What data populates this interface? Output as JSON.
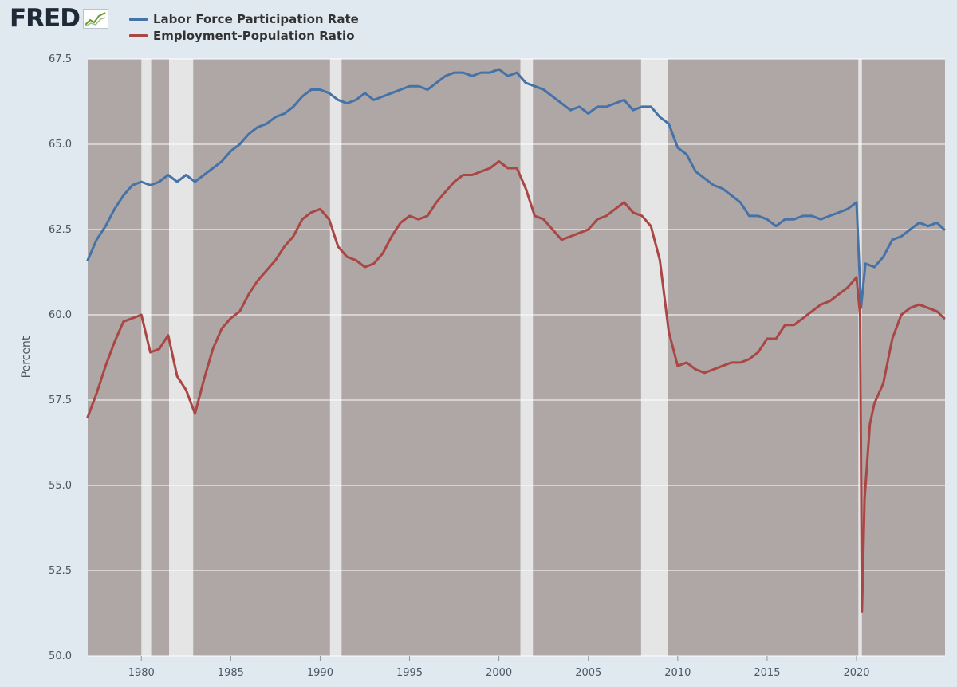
{
  "logo": {
    "text": "FRED"
  },
  "legend": [
    {
      "label": "Labor Force Participation Rate",
      "color": "#4572a7"
    },
    {
      "label": "Employment-Population Ratio",
      "color": "#aa4643"
    }
  ],
  "chart_data": {
    "type": "line",
    "ylabel": "Percent",
    "xlim": [
      1977.0,
      2024.95
    ],
    "ylim": [
      50.0,
      67.5
    ],
    "y_ticks": [
      "50.0",
      "52.5",
      "55.0",
      "57.5",
      "60.0",
      "62.5",
      "65.0",
      "67.5"
    ],
    "x_ticks": [
      "1980",
      "1985",
      "1990",
      "1995",
      "2000",
      "2005",
      "2010",
      "2015",
      "2020"
    ],
    "grid": true,
    "legend_position": "top-left",
    "recessions": [
      [
        1980.0,
        1980.55
      ],
      [
        1981.55,
        1982.9
      ],
      [
        1990.55,
        1991.2
      ],
      [
        2001.2,
        2001.9
      ],
      [
        2007.95,
        2009.45
      ],
      [
        2020.1,
        2020.3
      ]
    ],
    "series": [
      {
        "name": "Labor Force Participation Rate",
        "color": "#4572a7",
        "points": [
          [
            1977.0,
            61.6
          ],
          [
            1977.5,
            62.2
          ],
          [
            1978.0,
            62.6
          ],
          [
            1978.5,
            63.1
          ],
          [
            1979.0,
            63.5
          ],
          [
            1979.5,
            63.8
          ],
          [
            1980.0,
            63.9
          ],
          [
            1980.5,
            63.8
          ],
          [
            1981.0,
            63.9
          ],
          [
            1981.5,
            64.1
          ],
          [
            1982.0,
            63.9
          ],
          [
            1982.5,
            64.1
          ],
          [
            1983.0,
            63.9
          ],
          [
            1983.5,
            64.1
          ],
          [
            1984.0,
            64.3
          ],
          [
            1984.5,
            64.5
          ],
          [
            1985.0,
            64.8
          ],
          [
            1985.5,
            65.0
          ],
          [
            1986.0,
            65.3
          ],
          [
            1986.5,
            65.5
          ],
          [
            1987.0,
            65.6
          ],
          [
            1987.5,
            65.8
          ],
          [
            1988.0,
            65.9
          ],
          [
            1988.5,
            66.1
          ],
          [
            1989.0,
            66.4
          ],
          [
            1989.5,
            66.6
          ],
          [
            1990.0,
            66.6
          ],
          [
            1990.5,
            66.5
          ],
          [
            1991.0,
            66.3
          ],
          [
            1991.5,
            66.2
          ],
          [
            1992.0,
            66.3
          ],
          [
            1992.5,
            66.5
          ],
          [
            1993.0,
            66.3
          ],
          [
            1993.5,
            66.4
          ],
          [
            1994.0,
            66.5
          ],
          [
            1994.5,
            66.6
          ],
          [
            1995.0,
            66.7
          ],
          [
            1995.5,
            66.7
          ],
          [
            1996.0,
            66.6
          ],
          [
            1996.5,
            66.8
          ],
          [
            1997.0,
            67.0
          ],
          [
            1997.5,
            67.1
          ],
          [
            1998.0,
            67.1
          ],
          [
            1998.5,
            67.0
          ],
          [
            1999.0,
            67.1
          ],
          [
            1999.5,
            67.1
          ],
          [
            2000.0,
            67.2
          ],
          [
            2000.5,
            67.0
          ],
          [
            2001.0,
            67.1
          ],
          [
            2001.5,
            66.8
          ],
          [
            2002.0,
            66.7
          ],
          [
            2002.5,
            66.6
          ],
          [
            2003.0,
            66.4
          ],
          [
            2003.5,
            66.2
          ],
          [
            2004.0,
            66.0
          ],
          [
            2004.5,
            66.1
          ],
          [
            2005.0,
            65.9
          ],
          [
            2005.5,
            66.1
          ],
          [
            2006.0,
            66.1
          ],
          [
            2006.5,
            66.2
          ],
          [
            2007.0,
            66.3
          ],
          [
            2007.5,
            66.0
          ],
          [
            2008.0,
            66.1
          ],
          [
            2008.5,
            66.1
          ],
          [
            2009.0,
            65.8
          ],
          [
            2009.5,
            65.6
          ],
          [
            2010.0,
            64.9
          ],
          [
            2010.5,
            64.7
          ],
          [
            2011.0,
            64.2
          ],
          [
            2011.5,
            64.0
          ],
          [
            2012.0,
            63.8
          ],
          [
            2012.5,
            63.7
          ],
          [
            2013.0,
            63.5
          ],
          [
            2013.5,
            63.3
          ],
          [
            2014.0,
            62.9
          ],
          [
            2014.5,
            62.9
          ],
          [
            2015.0,
            62.8
          ],
          [
            2015.5,
            62.6
          ],
          [
            2016.0,
            62.8
          ],
          [
            2016.5,
            62.8
          ],
          [
            2017.0,
            62.9
          ],
          [
            2017.5,
            62.9
          ],
          [
            2018.0,
            62.8
          ],
          [
            2018.5,
            62.9
          ],
          [
            2019.0,
            63.0
          ],
          [
            2019.5,
            63.1
          ],
          [
            2020.0,
            63.3
          ],
          [
            2020.25,
            60.2
          ],
          [
            2020.5,
            61.5
          ],
          [
            2021.0,
            61.4
          ],
          [
            2021.5,
            61.7
          ],
          [
            2022.0,
            62.2
          ],
          [
            2022.5,
            62.3
          ],
          [
            2023.0,
            62.5
          ],
          [
            2023.5,
            62.7
          ],
          [
            2024.0,
            62.6
          ],
          [
            2024.5,
            62.7
          ],
          [
            2024.9,
            62.5
          ]
        ]
      },
      {
        "name": "Employment-Population Ratio",
        "color": "#aa4643",
        "points": [
          [
            1977.0,
            57.0
          ],
          [
            1977.5,
            57.7
          ],
          [
            1978.0,
            58.5
          ],
          [
            1978.5,
            59.2
          ],
          [
            1979.0,
            59.8
          ],
          [
            1979.5,
            59.9
          ],
          [
            1980.0,
            60.0
          ],
          [
            1980.5,
            58.9
          ],
          [
            1981.0,
            59.0
          ],
          [
            1981.5,
            59.4
          ],
          [
            1982.0,
            58.2
          ],
          [
            1982.5,
            57.8
          ],
          [
            1983.0,
            57.1
          ],
          [
            1983.5,
            58.1
          ],
          [
            1984.0,
            59.0
          ],
          [
            1984.5,
            59.6
          ],
          [
            1985.0,
            59.9
          ],
          [
            1985.5,
            60.1
          ],
          [
            1986.0,
            60.6
          ],
          [
            1986.5,
            61.0
          ],
          [
            1987.0,
            61.3
          ],
          [
            1987.5,
            61.6
          ],
          [
            1988.0,
            62.0
          ],
          [
            1988.5,
            62.3
          ],
          [
            1989.0,
            62.8
          ],
          [
            1989.5,
            63.0
          ],
          [
            1990.0,
            63.1
          ],
          [
            1990.5,
            62.8
          ],
          [
            1991.0,
            62.0
          ],
          [
            1991.5,
            61.7
          ],
          [
            1992.0,
            61.6
          ],
          [
            1992.5,
            61.4
          ],
          [
            1993.0,
            61.5
          ],
          [
            1993.5,
            61.8
          ],
          [
            1994.0,
            62.3
          ],
          [
            1994.5,
            62.7
          ],
          [
            1995.0,
            62.9
          ],
          [
            1995.5,
            62.8
          ],
          [
            1996.0,
            62.9
          ],
          [
            1996.5,
            63.3
          ],
          [
            1997.0,
            63.6
          ],
          [
            1997.5,
            63.9
          ],
          [
            1998.0,
            64.1
          ],
          [
            1998.5,
            64.1
          ],
          [
            1999.0,
            64.2
          ],
          [
            1999.5,
            64.3
          ],
          [
            2000.0,
            64.5
          ],
          [
            2000.5,
            64.3
          ],
          [
            2001.0,
            64.3
          ],
          [
            2001.5,
            63.7
          ],
          [
            2002.0,
            62.9
          ],
          [
            2002.5,
            62.8
          ],
          [
            2003.0,
            62.5
          ],
          [
            2003.5,
            62.2
          ],
          [
            2004.0,
            62.3
          ],
          [
            2004.5,
            62.4
          ],
          [
            2005.0,
            62.5
          ],
          [
            2005.5,
            62.8
          ],
          [
            2006.0,
            62.9
          ],
          [
            2006.5,
            63.1
          ],
          [
            2007.0,
            63.3
          ],
          [
            2007.5,
            63.0
          ],
          [
            2008.0,
            62.9
          ],
          [
            2008.5,
            62.6
          ],
          [
            2009.0,
            61.6
          ],
          [
            2009.5,
            59.5
          ],
          [
            2010.0,
            58.5
          ],
          [
            2010.5,
            58.6
          ],
          [
            2011.0,
            58.4
          ],
          [
            2011.5,
            58.3
          ],
          [
            2012.0,
            58.4
          ],
          [
            2012.5,
            58.5
          ],
          [
            2013.0,
            58.6
          ],
          [
            2013.5,
            58.6
          ],
          [
            2014.0,
            58.7
          ],
          [
            2014.5,
            58.9
          ],
          [
            2015.0,
            59.3
          ],
          [
            2015.5,
            59.3
          ],
          [
            2016.0,
            59.7
          ],
          [
            2016.5,
            59.7
          ],
          [
            2017.0,
            59.9
          ],
          [
            2017.5,
            60.1
          ],
          [
            2018.0,
            60.3
          ],
          [
            2018.5,
            60.4
          ],
          [
            2019.0,
            60.6
          ],
          [
            2019.5,
            60.8
          ],
          [
            2020.0,
            61.1
          ],
          [
            2020.2,
            60.0
          ],
          [
            2020.3,
            51.3
          ],
          [
            2020.45,
            54.6
          ],
          [
            2020.75,
            56.8
          ],
          [
            2021.0,
            57.4
          ],
          [
            2021.5,
            58.0
          ],
          [
            2022.0,
            59.3
          ],
          [
            2022.5,
            60.0
          ],
          [
            2023.0,
            60.2
          ],
          [
            2023.5,
            60.3
          ],
          [
            2024.0,
            60.2
          ],
          [
            2024.5,
            60.1
          ],
          [
            2024.9,
            59.9
          ]
        ]
      }
    ]
  }
}
